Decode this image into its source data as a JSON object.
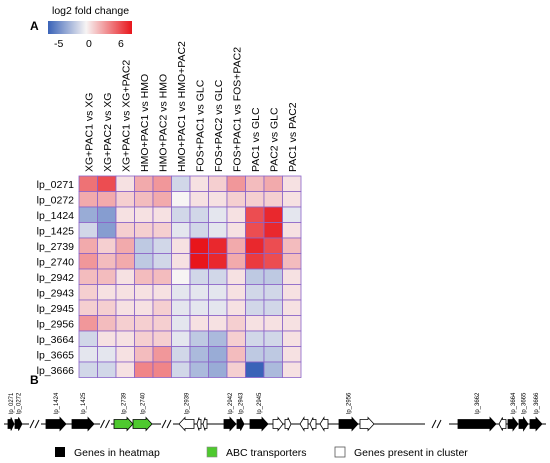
{
  "panel_a_label": "A",
  "panel_b_label": "B",
  "colorbar": {
    "title": "log2 fold change",
    "tick_labels": [
      "-5",
      "0",
      "6"
    ],
    "min": -5,
    "max": 6,
    "low_color": "#3a63b8",
    "mid_color": "#f7f4f4",
    "high_color": "#e8151b"
  },
  "chart_data": {
    "type": "heatmap",
    "x_labels": [
      "XG+PAC1 vs XG",
      "XG+PAC2 vs XG",
      "XG+PAC1 vs XG+PAC2",
      "HMO+PAC1 vs HMO",
      "HMO+PAC2 vs HMO",
      "HMO+PAC1 vs HMO+PAC2",
      "FOS+PAC1 vs GLC",
      "FOS+PAC2 vs GLC",
      "FOS+PAC1 vs FOS+PAC2",
      "PAC1 vs GLC",
      "PAC2 vs GLC",
      "PAC1 vs PAC2"
    ],
    "y_labels": [
      "lp_0271",
      "lp_0272",
      "lp_1424",
      "lp_1425",
      "lp_2739",
      "lp_2740",
      "lp_2942",
      "lp_2943",
      "lp_2945",
      "lp_2956",
      "lp_3664",
      "lp_3665",
      "lp_3666"
    ],
    "values": [
      [
        3.5,
        4.5,
        0.5,
        2.0,
        2.5,
        -1.0,
        0.5,
        1.0,
        2.5,
        1.5,
        2.0,
        0.5
      ],
      [
        2.0,
        2.0,
        1.0,
        1.5,
        2.0,
        0.0,
        0.5,
        0.5,
        1.0,
        1.0,
        1.0,
        0.5
      ],
      [
        -2.5,
        -3.0,
        0.5,
        0.5,
        0.5,
        -1.0,
        -1.0,
        -0.5,
        0.5,
        4.5,
        5.5,
        -0.5
      ],
      [
        -1.0,
        -3.0,
        1.0,
        1.0,
        1.0,
        -0.5,
        -1.0,
        -0.5,
        0.5,
        4.5,
        5.5,
        0.5
      ],
      [
        2.0,
        1.0,
        2.0,
        -1.5,
        -1.0,
        0.5,
        6.0,
        5.5,
        2.0,
        5.5,
        4.5,
        1.5
      ],
      [
        2.5,
        1.5,
        2.0,
        -1.5,
        -1.0,
        0.5,
        6.0,
        5.5,
        2.0,
        5.0,
        4.5,
        1.5
      ],
      [
        1.5,
        1.5,
        0.5,
        1.5,
        1.5,
        0.0,
        -1.0,
        -1.0,
        0.5,
        -1.5,
        -1.5,
        0.5
      ],
      [
        1.0,
        0.5,
        0.5,
        0.5,
        0.5,
        -0.5,
        -0.5,
        -0.5,
        0.5,
        -1.0,
        -1.0,
        0.5
      ],
      [
        1.0,
        1.0,
        0.5,
        0.5,
        1.0,
        -0.5,
        -0.5,
        -0.5,
        0.5,
        -1.0,
        -1.0,
        0.5
      ],
      [
        2.5,
        1.5,
        1.0,
        1.0,
        1.0,
        -0.5,
        0.5,
        0.5,
        1.0,
        0.5,
        0.5,
        0.5
      ],
      [
        -1.0,
        0.5,
        0.5,
        1.0,
        1.0,
        -0.5,
        -1.5,
        -2.0,
        1.0,
        -1.0,
        -1.0,
        0.5
      ],
      [
        -0.5,
        -0.5,
        0.5,
        1.5,
        2.5,
        -1.0,
        -2.0,
        -2.5,
        1.5,
        -1.5,
        -1.5,
        0.5
      ],
      [
        -1.0,
        -1.0,
        0.5,
        3.0,
        3.0,
        -1.0,
        -2.0,
        -2.5,
        1.0,
        -5.0,
        -2.0,
        0.5
      ]
    ],
    "color_range": [
      -5,
      6
    ]
  },
  "gene_map": {
    "genes": [
      {
        "name": "lp_0271",
        "kind": "heatmap",
        "dir": 1
      },
      {
        "name": "lp_0272",
        "kind": "heatmap",
        "dir": 1
      },
      {
        "name": "lp_1424",
        "kind": "heatmap",
        "dir": 1
      },
      {
        "name": "lp_1425",
        "kind": "heatmap",
        "dir": 1
      },
      {
        "name": "lp_2739",
        "kind": "abc",
        "dir": 1
      },
      {
        "name": "lp_2740",
        "kind": "abc",
        "dir": 1
      },
      {
        "name": "lp_2939",
        "kind": "cluster",
        "dir": -1
      },
      {
        "name": "",
        "kind": "cluster",
        "dir": -1
      },
      {
        "name": "",
        "kind": "cluster",
        "dir": -1
      },
      {
        "name": "lp_2942",
        "kind": "heatmap",
        "dir": 1
      },
      {
        "name": "lp_2943",
        "kind": "heatmap",
        "dir": 1
      },
      {
        "name": "lp_2945",
        "kind": "heatmap",
        "dir": 1
      },
      {
        "name": "",
        "kind": "cluster",
        "dir": 1
      },
      {
        "name": "",
        "kind": "cluster",
        "dir": 1
      },
      {
        "name": "",
        "kind": "cluster",
        "dir": -1
      },
      {
        "name": "",
        "kind": "cluster",
        "dir": -1
      },
      {
        "name": "",
        "kind": "cluster",
        "dir": -1
      },
      {
        "name": "lp_2956",
        "kind": "heatmap",
        "dir": 1
      },
      {
        "name": "",
        "kind": "cluster",
        "dir": 1
      },
      {
        "name": "lp_3662",
        "kind": "heatmap",
        "dir": 1
      },
      {
        "name": "",
        "kind": "cluster",
        "dir": -1
      },
      {
        "name": "lp_3664",
        "kind": "heatmap",
        "dir": 1
      },
      {
        "name": "lp_3665",
        "kind": "heatmap",
        "dir": 1
      },
      {
        "name": "lp_3666",
        "kind": "heatmap",
        "dir": 1
      }
    ],
    "colors": {
      "heatmap": "#000000",
      "abc": "#4ec92e",
      "cluster": "#ffffff"
    }
  },
  "legend": [
    {
      "kind": "heatmap",
      "label": "Genes in heatmap"
    },
    {
      "kind": "abc",
      "label": "ABC transporters"
    },
    {
      "kind": "cluster",
      "label": "Genes present in cluster"
    }
  ]
}
